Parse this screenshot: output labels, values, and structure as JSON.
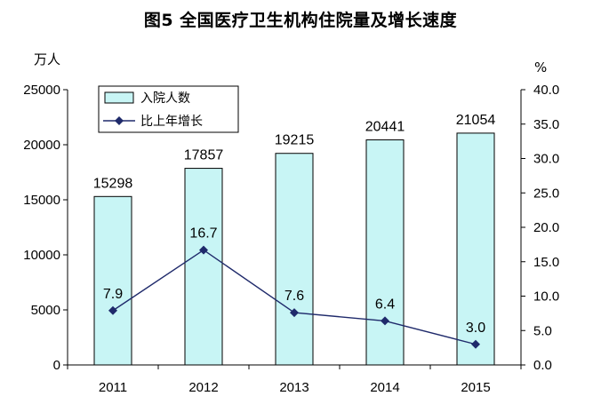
{
  "title": "图5  全国医疗卫生机构住院量及增长速度",
  "chart_data": {
    "type": "bar",
    "title": "图5  全国医疗卫生机构住院量及增长速度",
    "categories": [
      "2011",
      "2012",
      "2013",
      "2014",
      "2015"
    ],
    "y_left": {
      "unit": "万人",
      "ylim": [
        0,
        25000
      ],
      "ticks": [
        "0",
        "5000",
        "10000",
        "15000",
        "20000",
        "25000"
      ]
    },
    "y_right": {
      "unit": "%",
      "ylim": [
        0,
        40
      ],
      "ticks": [
        "0.0",
        "5.0",
        "10.0",
        "15.0",
        "20.0",
        "25.0",
        "30.0",
        "35.0",
        "40.0"
      ]
    },
    "series": [
      {
        "name": "入院人数",
        "type": "bar",
        "axis": "left",
        "values": [
          15298,
          17857,
          19215,
          20441,
          21054
        ],
        "labels": [
          "15298",
          "17857",
          "19215",
          "20441",
          "21054"
        ],
        "color": "#c8f5f5",
        "stroke": "#000000"
      },
      {
        "name": "比上年增长",
        "type": "line",
        "axis": "right",
        "values": [
          7.9,
          16.7,
          7.6,
          6.4,
          3.0
        ],
        "labels": [
          "7.9",
          "16.7",
          "7.6",
          "6.4",
          "3.0"
        ],
        "color": "#1f2a6b"
      }
    ],
    "legend_position": "top-left",
    "grid": false
  }
}
